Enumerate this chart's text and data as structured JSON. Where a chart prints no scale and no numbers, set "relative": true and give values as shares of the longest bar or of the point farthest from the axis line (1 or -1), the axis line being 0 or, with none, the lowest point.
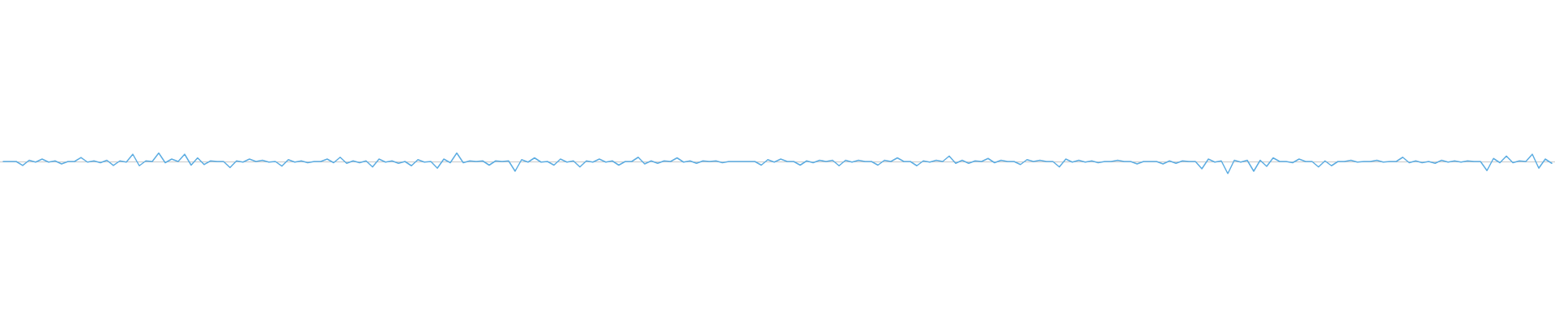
{
  "chart_data": {
    "type": "line",
    "relative": true,
    "categories": [
      null,
      null,
      null,
      null,
      null,
      null,
      null,
      null,
      null,
      null,
      null,
      null,
      null,
      null,
      null,
      null,
      null,
      null,
      null,
      null,
      null,
      null,
      null,
      null,
      null,
      null,
      null,
      null,
      null,
      null,
      null,
      null,
      null,
      null,
      null,
      null,
      null,
      null,
      null,
      null,
      null,
      null,
      null,
      null,
      null,
      null,
      null,
      null,
      null,
      null,
      null,
      null,
      null,
      null,
      null,
      null,
      null,
      null,
      null,
      null,
      null,
      null,
      null,
      null,
      null,
      null,
      null,
      null,
      null,
      null,
      null,
      null,
      null,
      null,
      null,
      null,
      null,
      null,
      null,
      null,
      null,
      null,
      null,
      null,
      null,
      null,
      null,
      null,
      null,
      null,
      null,
      null,
      null,
      null,
      null,
      null,
      null,
      null,
      null,
      null,
      null,
      null,
      null,
      null,
      null,
      null,
      null,
      null,
      null,
      null,
      null,
      null,
      null,
      null,
      null,
      null,
      null,
      null,
      null,
      null,
      null,
      null,
      null,
      null,
      null,
      null,
      null,
      null,
      null,
      null,
      null,
      null,
      null,
      null,
      null,
      null,
      null,
      null,
      null,
      null,
      null,
      null,
      null,
      null,
      null,
      null,
      null,
      null,
      null,
      null,
      null,
      null,
      null,
      null,
      null,
      null,
      null,
      null,
      null,
      null,
      null,
      null,
      null,
      null,
      null,
      null,
      null,
      null,
      null,
      null,
      null,
      null,
      null,
      null,
      null,
      null,
      null,
      null,
      null,
      null,
      null,
      null,
      null,
      null,
      null,
      null,
      null,
      null,
      null,
      null,
      null,
      null,
      null,
      null,
      null,
      null,
      null,
      null,
      null,
      null,
      null,
      null,
      null,
      null,
      null,
      null,
      null,
      null,
      null,
      null,
      null,
      null,
      null,
      null,
      null,
      null,
      null,
      null,
      null,
      null,
      null,
      null,
      null,
      null,
      null,
      null,
      null,
      null,
      null,
      null,
      null,
      null,
      null,
      null,
      null,
      null,
      null,
      null,
      null,
      null
    ],
    "series": [
      {
        "color": "#5dade2",
        "values": [
          0,
          0,
          0,
          -0.33,
          0.1,
          -0.05,
          0.2,
          -0.05,
          0.05,
          -0.2,
          0,
          0,
          0.33,
          -0.05,
          0.05,
          -0.1,
          0.1,
          -0.33,
          0.05,
          -0.05,
          0.6,
          -0.35,
          0.05,
          0,
          0.7,
          -0.1,
          0.2,
          0,
          0.6,
          -0.3,
          0.3,
          -0.25,
          0.05,
          0,
          0,
          -0.5,
          0.05,
          -0.05,
          0.2,
          0,
          0.1,
          -0.05,
          0,
          -0.38,
          0.15,
          -0.05,
          0.05,
          -0.1,
          0,
          0,
          0.2,
          -0.1,
          0.35,
          -0.15,
          0.05,
          -0.1,
          0.05,
          -0.45,
          0.2,
          -0.05,
          0.05,
          -0.15,
          0,
          -0.35,
          0.15,
          -0.05,
          0,
          -0.55,
          0.2,
          -0.1,
          0.7,
          -0.1,
          0.05,
          0,
          0.05,
          -0.3,
          0.05,
          0,
          0.05,
          -0.8,
          0.15,
          -0.05,
          0.3,
          -0.05,
          0,
          -0.3,
          0.2,
          -0.05,
          0.05,
          -0.45,
          0.05,
          -0.05,
          0.2,
          -0.05,
          0.05,
          -0.3,
          0,
          0,
          0.35,
          -0.2,
          0.05,
          -0.15,
          0.05,
          0,
          0.3,
          -0.05,
          0.05,
          -0.15,
          0.05,
          0,
          0.05,
          -0.1,
          0,
          0,
          0,
          0,
          0,
          -0.3,
          0.15,
          -0.05,
          0.2,
          0,
          0,
          -0.3,
          0.05,
          -0.1,
          0.1,
          0,
          0.1,
          -0.35,
          0.1,
          -0.05,
          0.1,
          0,
          0,
          -0.3,
          0.1,
          0,
          0.3,
          0,
          0,
          -0.35,
          0.05,
          -0.05,
          0.1,
          0,
          0.45,
          -0.15,
          0.1,
          -0.15,
          0.05,
          0,
          0.25,
          -0.1,
          0.1,
          0,
          0,
          -0.25,
          0.15,
          0,
          0.1,
          0,
          0,
          -0.45,
          0.2,
          -0.05,
          0.1,
          -0.05,
          0.05,
          -0.1,
          0,
          0,
          0.1,
          0,
          0,
          -0.2,
          0,
          0,
          0,
          -0.2,
          0.05,
          -0.15,
          0.05,
          0,
          0,
          -0.6,
          0.2,
          -0.05,
          0.05,
          -1,
          0.1,
          -0.05,
          0.1,
          -0.8,
          0.1,
          -0.4,
          0.3,
          0,
          0,
          -0.1,
          0.2,
          0,
          0,
          -0.45,
          0.05,
          -0.35,
          0,
          0,
          0.1,
          -0.05,
          0,
          0,
          0.1,
          -0.05,
          0,
          0,
          0.35,
          -0.1,
          0.05,
          -0.1,
          0,
          -0.15,
          0.1,
          -0.05,
          0.05,
          -0.05,
          0.05,
          0,
          0,
          -0.75,
          0.25,
          -0.1,
          0.45,
          -0.1,
          0.05,
          0,
          0.6,
          -0.55,
          0.2,
          -0.15
        ]
      }
    ]
  }
}
